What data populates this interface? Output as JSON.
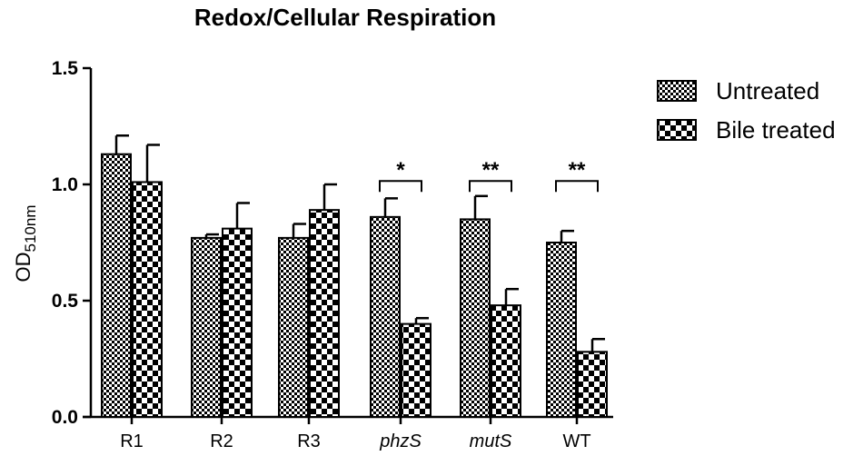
{
  "chart_data": {
    "type": "bar",
    "title": "Redox/Cellular Respiration",
    "ylabel": "OD",
    "ylabel_subscript": "510nm",
    "xlabel": "",
    "ylim": [
      0,
      1.5
    ],
    "yticks": [
      "0.0",
      "0.5",
      "1.0",
      "1.5"
    ],
    "categories": [
      "R1",
      "R2",
      "R3",
      "phzS",
      "mutS",
      "WT"
    ],
    "italic_categories": [
      "phzS",
      "mutS"
    ],
    "series": [
      {
        "name": "Untreated",
        "pattern": "fine-checker",
        "values": [
          1.13,
          0.77,
          0.77,
          0.86,
          0.85,
          0.75
        ],
        "errors": [
          0.08,
          0.015,
          0.06,
          0.08,
          0.1,
          0.05
        ]
      },
      {
        "name": "Bile treated",
        "pattern": "coarse-checker",
        "values": [
          1.01,
          0.81,
          0.89,
          0.4,
          0.48,
          0.28
        ],
        "errors": [
          0.16,
          0.11,
          0.11,
          0.025,
          0.07,
          0.055
        ]
      }
    ],
    "significance": [
      {
        "category": "phzS",
        "label": "*"
      },
      {
        "category": "mutS",
        "label": "**"
      },
      {
        "category": "WT",
        "label": "**"
      }
    ],
    "legend_position": "top-right",
    "grid": false,
    "colors": {
      "ink": "#000000",
      "background": "#ffffff"
    }
  }
}
